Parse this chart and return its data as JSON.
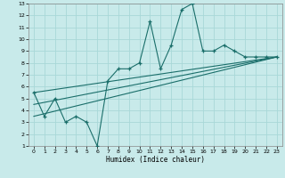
{
  "title": "",
  "xlabel": "Humidex (Indice chaleur)",
  "bg_color": "#c8eaea",
  "grid_color": "#a8d8d8",
  "line_color": "#1a6e6a",
  "xlim": [
    -0.5,
    23.5
  ],
  "ylim": [
    1,
    13
  ],
  "xticks": [
    0,
    1,
    2,
    3,
    4,
    5,
    6,
    7,
    8,
    9,
    10,
    11,
    12,
    13,
    14,
    15,
    16,
    17,
    18,
    19,
    20,
    21,
    22,
    23
  ],
  "yticks": [
    1,
    2,
    3,
    4,
    5,
    6,
    7,
    8,
    9,
    10,
    11,
    12,
    13
  ],
  "line1_x": [
    0,
    1,
    2,
    3,
    4,
    5,
    6,
    7,
    8,
    9,
    10,
    11,
    12,
    13,
    14,
    15,
    16,
    17,
    18,
    19,
    20,
    21,
    22,
    23
  ],
  "line1_y": [
    5.5,
    3.5,
    5.0,
    3.0,
    3.5,
    3.0,
    1.0,
    6.5,
    7.5,
    7.5,
    8.0,
    11.5,
    7.5,
    9.5,
    12.5,
    13.0,
    9.0,
    9.0,
    9.5,
    9.0,
    8.5,
    8.5,
    8.5,
    8.5
  ],
  "line2_x": [
    0,
    23
  ],
  "line2_y": [
    5.5,
    8.5
  ],
  "line3_x": [
    0,
    23
  ],
  "line3_y": [
    3.5,
    8.5
  ],
  "line4_x": [
    0,
    23
  ],
  "line4_y": [
    4.5,
    8.5
  ]
}
